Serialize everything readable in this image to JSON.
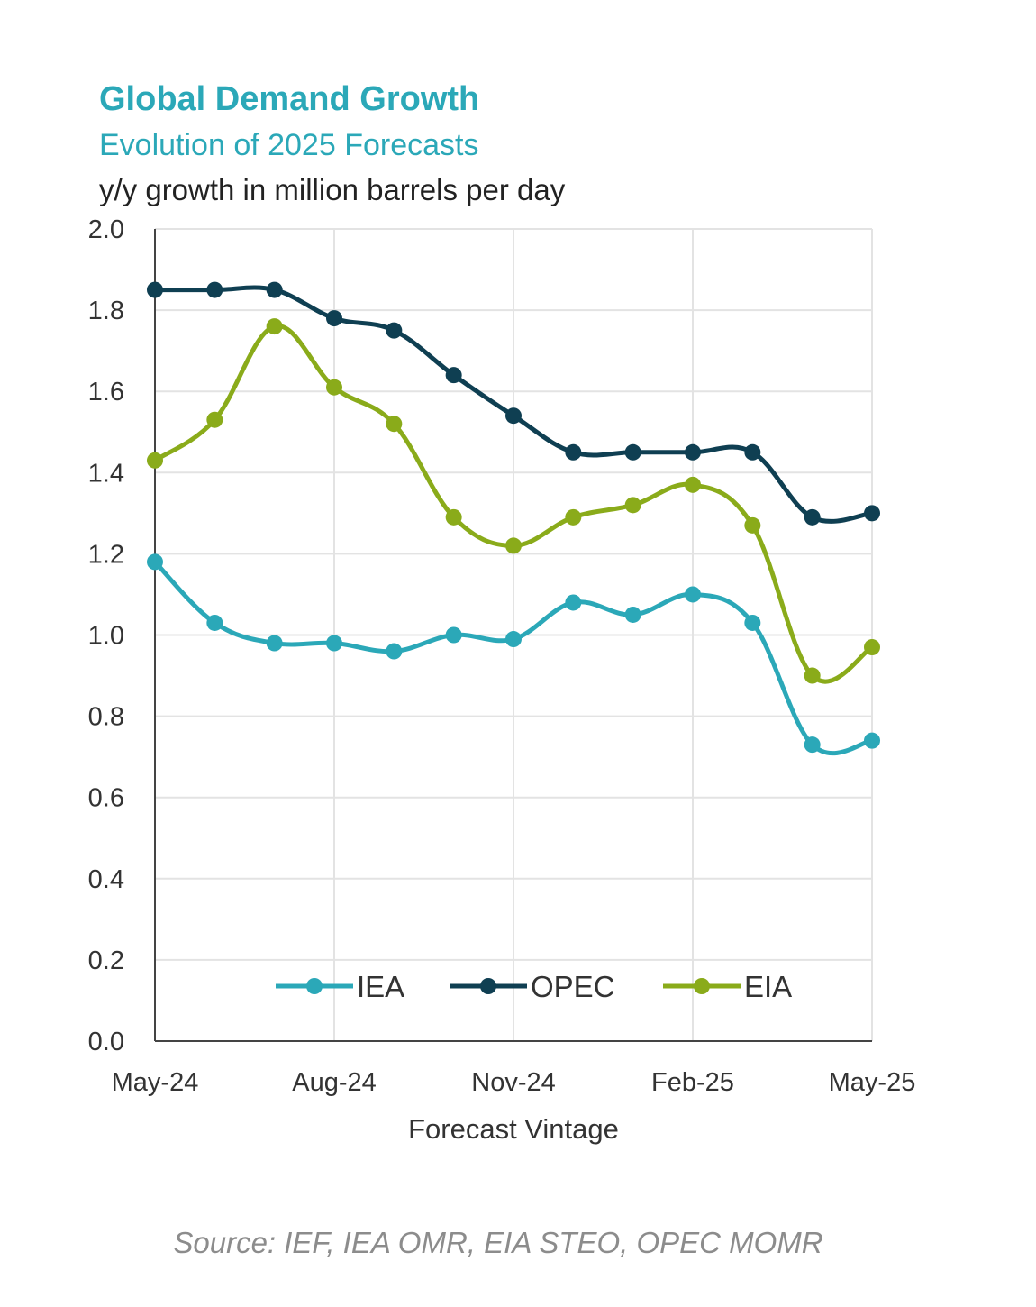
{
  "chart_data": {
    "type": "line",
    "title": "Global Demand Growth",
    "subtitle": "Evolution of 2025 Forecasts",
    "ylabel": "y/y growth in million barrels per day",
    "xlabel": "Forecast Vintage",
    "source": "Source: IEF, IEA OMR, EIA STEO, OPEC MOMR",
    "ylim": [
      0,
      2.0
    ],
    "yticks": [
      "0.0",
      "0.2",
      "0.4",
      "0.6",
      "0.8",
      "1.0",
      "1.2",
      "1.4",
      "1.6",
      "1.8",
      "2.0"
    ],
    "x": [
      "May-24",
      "Jun-24",
      "Jul-24",
      "Aug-24",
      "Sep-24",
      "Oct-24",
      "Nov-24",
      "Dec-24",
      "Jan-25",
      "Feb-25",
      "Mar-25",
      "Apr-25",
      "May-25"
    ],
    "xtick_labels": [
      "May-24",
      "Aug-24",
      "Nov-24",
      "Feb-25",
      "May-25"
    ],
    "grid": true,
    "legend_position": "bottom-center",
    "series": [
      {
        "name": "IEA",
        "color": "#2ba8b8",
        "values": [
          1.18,
          1.03,
          0.98,
          0.98,
          0.96,
          1.0,
          0.99,
          1.08,
          1.05,
          1.1,
          1.03,
          0.73,
          0.74
        ]
      },
      {
        "name": "OPEC",
        "color": "#0f3f52",
        "values": [
          1.85,
          1.85,
          1.85,
          1.78,
          1.75,
          1.64,
          1.54,
          1.45,
          1.45,
          1.45,
          1.45,
          1.29,
          1.3
        ]
      },
      {
        "name": "EIA",
        "color": "#8aab1a",
        "values": [
          1.43,
          1.53,
          1.76,
          1.61,
          1.52,
          1.29,
          1.22,
          1.29,
          1.32,
          1.37,
          1.27,
          0.9,
          0.97
        ]
      }
    ]
  },
  "colors": {
    "title": "#2ba8b8",
    "text": "#333333",
    "grid": "#e3e3e3",
    "axis": "#444444"
  }
}
